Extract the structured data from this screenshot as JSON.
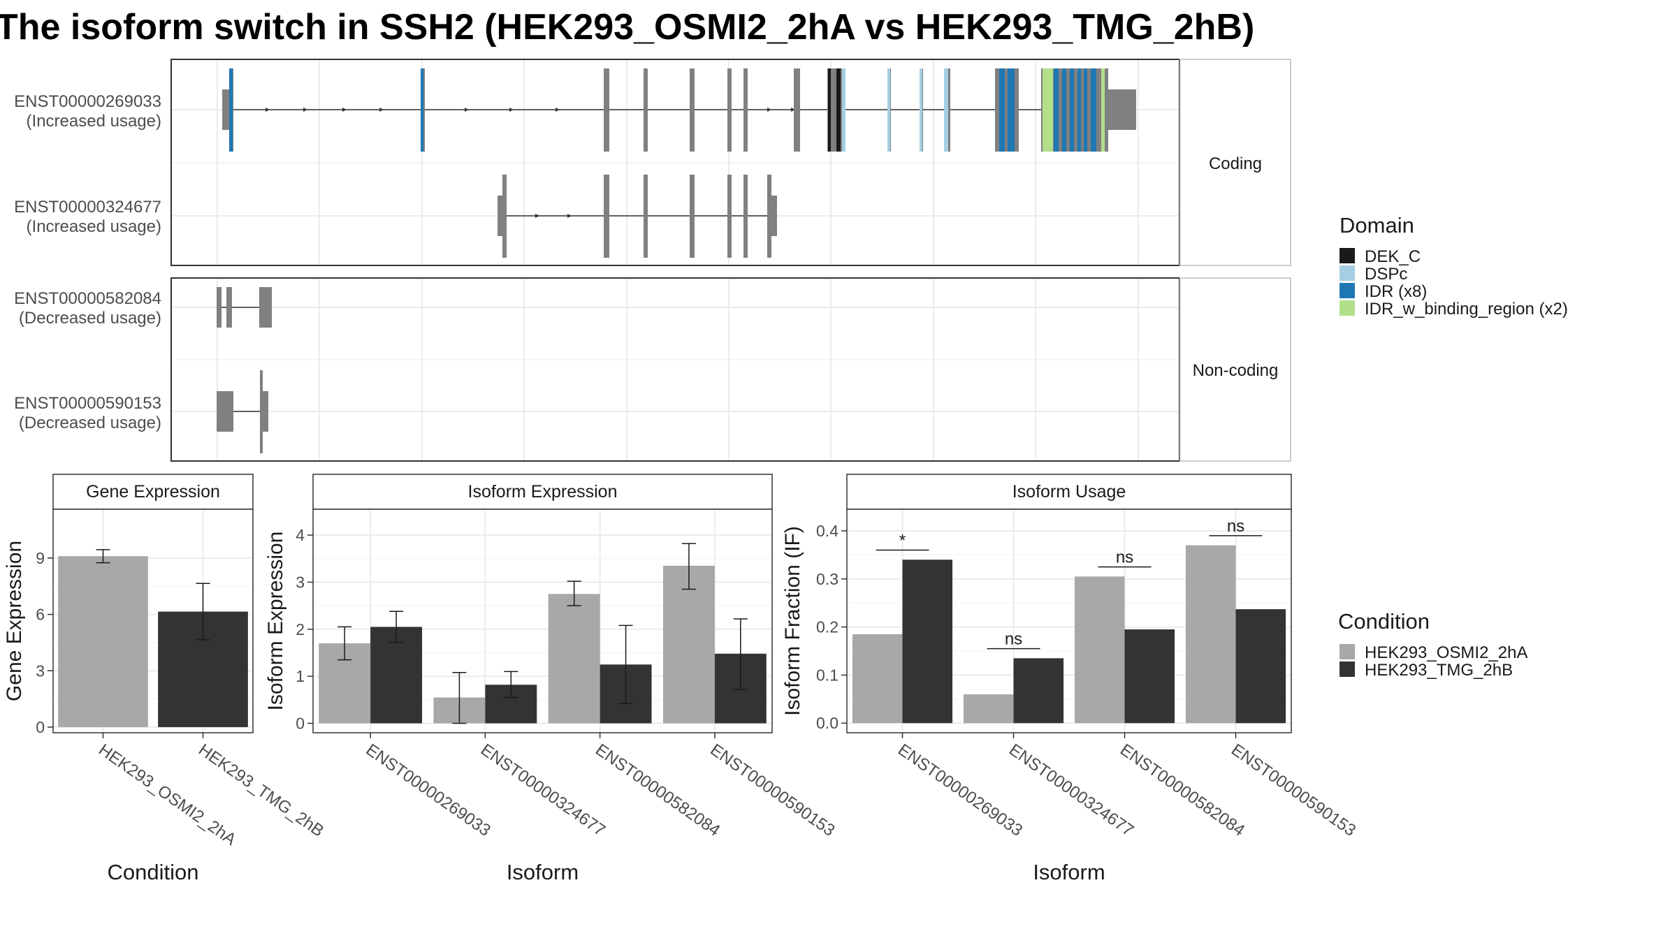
{
  "title": "The isoform switch in SSH2 (HEK293_OSMI2_2hA vs HEK293_TMG_2hB)",
  "colors": {
    "cond_a": "#a8a8a8",
    "cond_b": "#333333",
    "exon": "#808080",
    "DEK_C": "#1a1a1a",
    "DSPc": "#a6cee3",
    "IDR": "#1f78b4",
    "IDR_w_binding_region": "#b2df8a",
    "grid": "#ebebeb"
  },
  "structure": {
    "facets": [
      {
        "label": "Coding",
        "rows": [
          {
            "id": "ENST00000269033",
            "note": "(Increased usage)"
          },
          {
            "id": "ENST00000324677",
            "note": "(Increased usage)"
          }
        ]
      },
      {
        "label": "Non-coding",
        "rows": [
          {
            "id": "ENST00000582084",
            "note": "(Decreased usage)"
          },
          {
            "id": "ENST00000590153",
            "note": "(Decreased usage)"
          }
        ]
      }
    ]
  },
  "legend_domain": {
    "title": "Domain",
    "items": [
      {
        "label": "DEK_C",
        "color": "#1a1a1a"
      },
      {
        "label": "DSPc",
        "color": "#a6cee3"
      },
      {
        "label": "IDR (x8)",
        "color": "#1f78b4"
      },
      {
        "label": "IDR_w_binding_region (x2)",
        "color": "#b2df8a"
      }
    ]
  },
  "legend_condition": {
    "title": "Condition",
    "items": [
      {
        "label": "HEK293_OSMI2_2hA",
        "color": "#a8a8a8"
      },
      {
        "label": "HEK293_TMG_2hB",
        "color": "#333333"
      }
    ]
  },
  "chart_data": [
    {
      "type": "bar",
      "title": "Gene Expression",
      "xlabel": "Condition",
      "ylabel": "Gene Expression",
      "categories": [
        "HEK293_OSMI2_2hA",
        "HEK293_TMG_2hB"
      ],
      "values": [
        9.1,
        6.15
      ],
      "errors": [
        [
          8.75,
          9.45
        ],
        [
          4.65,
          7.65
        ]
      ],
      "ylim": [
        -0.3,
        11.6
      ],
      "yticks": [
        0,
        3,
        6,
        9
      ]
    },
    {
      "type": "bar",
      "title": "Isoform Expression",
      "xlabel": "Isoform",
      "ylabel": "Isoform Expression",
      "categories": [
        "ENST00000269033",
        "ENST00000324677",
        "ENST00000582084",
        "ENST00000590153"
      ],
      "series": [
        {
          "name": "HEK293_OSMI2_2hA",
          "values": [
            1.7,
            0.55,
            2.75,
            3.35
          ],
          "errors": [
            [
              1.35,
              2.05
            ],
            [
              0.0,
              1.08
            ],
            [
              2.5,
              3.02
            ],
            [
              2.85,
              3.82
            ]
          ]
        },
        {
          "name": "HEK293_TMG_2hB",
          "values": [
            2.05,
            0.82,
            1.25,
            1.48
          ],
          "errors": [
            [
              1.72,
              2.38
            ],
            [
              0.55,
              1.1
            ],
            [
              0.42,
              2.08
            ],
            [
              0.72,
              2.22
            ]
          ]
        }
      ],
      "ylim": [
        -0.2,
        4.55
      ],
      "yticks": [
        0,
        1,
        2,
        3,
        4
      ]
    },
    {
      "type": "bar",
      "title": "Isoform Usage",
      "xlabel": "Isoform",
      "ylabel": "Isoform Fraction (IF)",
      "categories": [
        "ENST00000269033",
        "ENST00000324677",
        "ENST00000582084",
        "ENST00000590153"
      ],
      "series": [
        {
          "name": "HEK293_OSMI2_2hA",
          "values": [
            0.185,
            0.06,
            0.305,
            0.37
          ]
        },
        {
          "name": "HEK293_TMG_2hB",
          "values": [
            0.34,
            0.135,
            0.195,
            0.237
          ]
        }
      ],
      "significance": [
        {
          "label": "*",
          "y": 0.36
        },
        {
          "label": "ns",
          "y": 0.155
        },
        {
          "label": "ns",
          "y": 0.325
        },
        {
          "label": "ns",
          "y": 0.39
        }
      ],
      "ylim": [
        -0.02,
        0.445
      ],
      "yticks": [
        0.0,
        0.1,
        0.2,
        0.3,
        0.4
      ],
      "ytick_labels": [
        "0.0",
        "0.1",
        "0.2",
        "0.3",
        "0.4"
      ]
    }
  ]
}
